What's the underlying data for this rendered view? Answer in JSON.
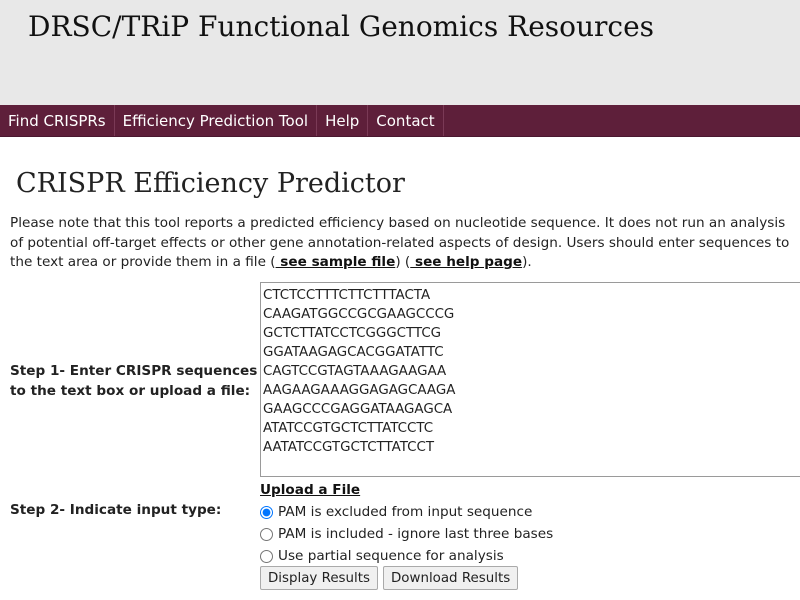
{
  "header": {
    "title": "DRSC/TRiP Functional Genomics Resources"
  },
  "nav": {
    "items": [
      "Find CRISPRs",
      "Efficiency Prediction Tool",
      "Help",
      "Contact"
    ]
  },
  "page": {
    "title": "CRISPR Efficiency Predictor",
    "intro_text": "Please note that this tool reports a predicted efficiency based on nucleotide sequence. It does not run an analysis of potential off-target effects or other gene annotation-related aspects of design. Users should enter sequences to the text area or provide them in a file (",
    "intro_link1": " see sample file",
    "intro_mid": ") (",
    "intro_link2": " see help page",
    "intro_end": ")."
  },
  "step1": {
    "label": "Step 1- Enter CRISPR sequences to the text box or upload a file:",
    "sequences": "CTCTCCTTTCTTCTTTACTA\nCAAGATGGCCGCGAAGCCCG\nGCTCTTATCCTCGGGCTTCG\nGGATAAGAGCACGGATATTC\nCAGTCCGTAGTAAAGAAGAA\nAAGAAGAAAGGAGAGCAAGA\nGAAGCCCGAGGATAAGAGCA\nATATCCGTGCTCTTATCCTC\nAATATCCGTGCTCTTATCCT",
    "upload_label": "Upload a File"
  },
  "step2": {
    "label": "Step 2- Indicate input type:",
    "options": [
      {
        "label": "PAM is excluded from input sequence",
        "checked": true
      },
      {
        "label": "PAM is included - ignore last three bases",
        "checked": false
      },
      {
        "label": "Use partial sequence for analysis",
        "checked": false
      }
    ]
  },
  "buttons": {
    "display": "Display Results",
    "download": "Download Results"
  }
}
